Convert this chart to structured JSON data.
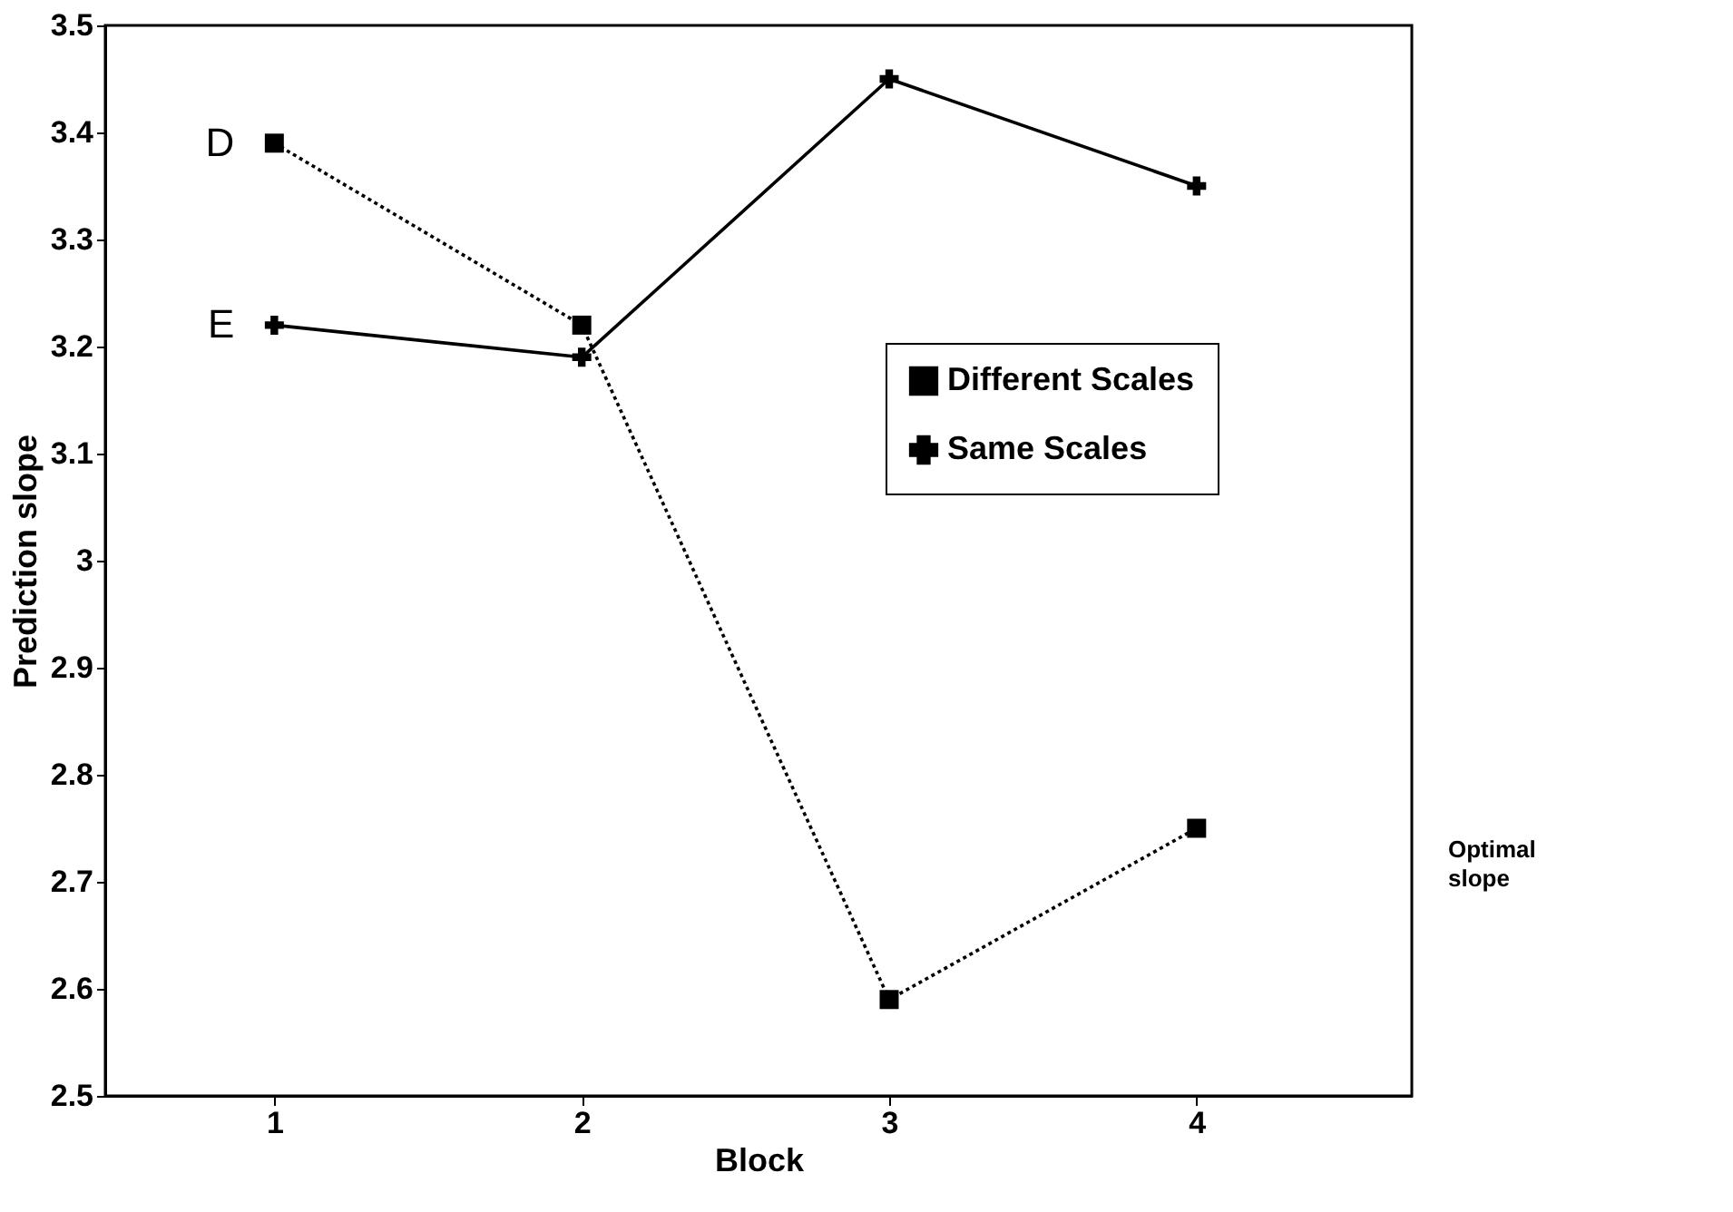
{
  "chart_data": {
    "type": "line",
    "xlabel": "Block",
    "ylabel": "Prediction slope",
    "x": [
      1,
      2,
      3,
      4
    ],
    "series": [
      {
        "name": "Different Scales",
        "color": "#000000",
        "values": [
          3.39,
          3.22,
          2.59,
          2.75
        ],
        "marker": "square",
        "line_style": "dotted"
      },
      {
        "name": "Same Scales",
        "color": "#000000",
        "values": [
          3.22,
          3.19,
          3.45,
          3.35
        ],
        "marker": "cross",
        "line_style": "solid"
      }
    ],
    "xlim": [
      0.45,
      4.7
    ],
    "xticks": [
      1,
      2,
      3,
      4
    ],
    "ylim": [
      2.5,
      3.5
    ],
    "yticks": [
      2.5,
      2.6,
      2.7,
      2.8,
      2.9,
      3,
      3.1,
      3.2,
      3.3,
      3.4,
      3.5
    ],
    "annotations": [
      {
        "text": "D",
        "x": 1,
        "y": 3.39
      },
      {
        "text": "E",
        "x": 1,
        "y": 3.22
      },
      "Optimal slope"
    ],
    "grid": false,
    "legend": "right"
  }
}
